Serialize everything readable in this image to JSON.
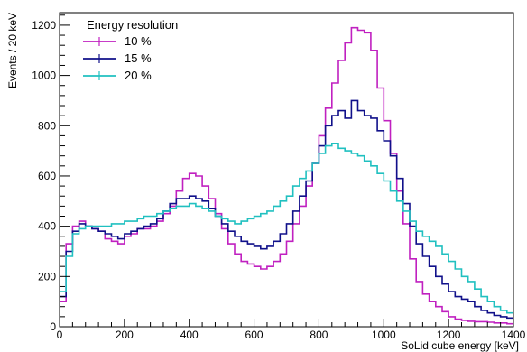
{
  "chart_data": {
    "type": "line",
    "xlabel": "SoLid cube energy [keV]",
    "ylabel": "Events / 20 keV",
    "xlim": [
      0,
      1400
    ],
    "ylim": [
      0,
      1250
    ],
    "x_ticks": [
      "0",
      "200",
      "400",
      "600",
      "800",
      "1000",
      "1200",
      "1400"
    ],
    "y_ticks": [
      "0",
      "200",
      "400",
      "600",
      "800",
      "1000",
      "1200"
    ],
    "legend": {
      "title": "Energy resolution",
      "placement": "top-left"
    },
    "bin_width": 20,
    "series": [
      {
        "name": "10 %",
        "color": "#c020c0",
        "values": [
          100,
          330,
          400,
          420,
          400,
          390,
          380,
          350,
          340,
          330,
          360,
          370,
          390,
          390,
          400,
          420,
          450,
          480,
          540,
          590,
          610,
          600,
          560,
          510,
          450,
          390,
          330,
          290,
          260,
          250,
          240,
          230,
          240,
          260,
          290,
          340,
          410,
          480,
          560,
          650,
          760,
          870,
          970,
          1060,
          1130,
          1190,
          1180,
          1170,
          1100,
          950,
          820,
          690,
          540,
          410,
          270,
          180,
          130,
          100,
          80,
          60,
          40,
          30,
          25,
          22,
          20,
          20,
          18,
          15,
          15,
          12
        ]
      },
      {
        "name": "15 %",
        "color": "#10108a",
        "values": [
          120,
          300,
          380,
          410,
          400,
          390,
          380,
          370,
          360,
          350,
          370,
          380,
          390,
          400,
          410,
          430,
          460,
          490,
          510,
          510,
          520,
          510,
          500,
          470,
          440,
          410,
          380,
          360,
          340,
          330,
          320,
          310,
          320,
          340,
          370,
          410,
          460,
          520,
          580,
          650,
          720,
          800,
          840,
          860,
          830,
          900,
          860,
          840,
          830,
          780,
          740,
          680,
          590,
          490,
          400,
          330,
          280,
          240,
          200,
          170,
          140,
          120,
          110,
          100,
          80,
          65,
          55,
          45,
          40,
          35
        ]
      },
      {
        "name": "20 %",
        "color": "#20c0c0",
        "values": [
          140,
          280,
          370,
          390,
          400,
          400,
          400,
          400,
          410,
          410,
          420,
          420,
          430,
          440,
          440,
          450,
          460,
          470,
          480,
          480,
          490,
          480,
          470,
          460,
          440,
          430,
          420,
          410,
          420,
          430,
          440,
          450,
          460,
          480,
          500,
          520,
          560,
          590,
          620,
          650,
          690,
          720,
          730,
          710,
          700,
          690,
          680,
          660,
          640,
          610,
          580,
          540,
          500,
          460,
          420,
          380,
          360,
          340,
          320,
          290,
          260,
          230,
          200,
          180,
          150,
          120,
          100,
          80,
          65,
          55
        ]
      }
    ]
  }
}
